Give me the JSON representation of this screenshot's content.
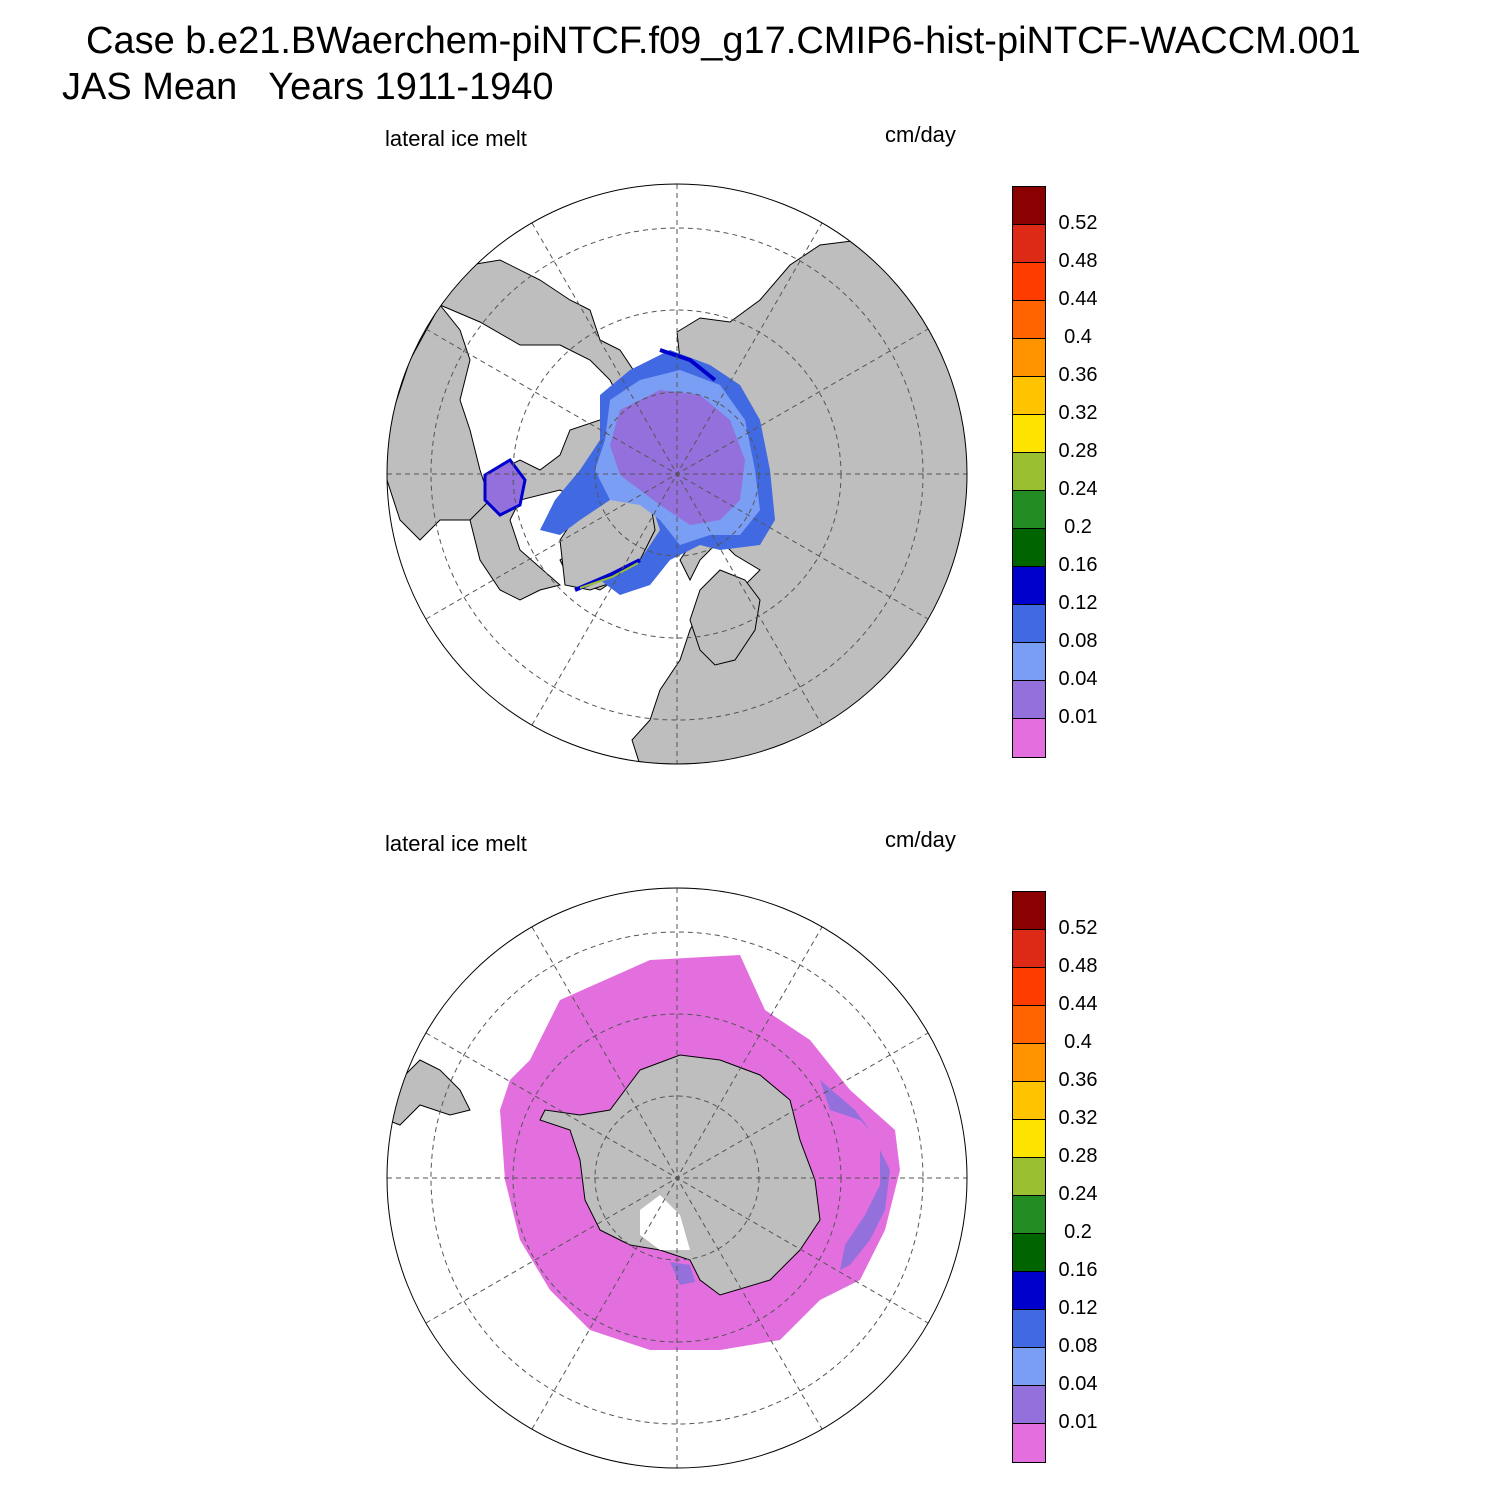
{
  "title": {
    "line1": "Case b.e21.BWaerchem-piNTCF.f09_g17.CMIP6-hist-piNTCF-WACCM.001",
    "line2": "JAS Mean   Years 1911-1940"
  },
  "panels": [
    {
      "variable": "lateral ice melt",
      "units": "cm/day",
      "hemisphere": "north"
    },
    {
      "variable": "lateral ice melt",
      "units": "cm/day",
      "hemisphere": "south"
    }
  ],
  "colorbar": {
    "labels": [
      "0.52",
      "0.48",
      "0.44",
      "0.4",
      "0.36",
      "0.32",
      "0.28",
      "0.24",
      "0.2",
      "0.16",
      "0.12",
      "0.08",
      "0.04",
      "0.01"
    ],
    "colors": [
      "#8b0000",
      "#dd2a16",
      "#ff3c00",
      "#ff6400",
      "#ff9400",
      "#ffc300",
      "#fde400",
      "#9ac031",
      "#228b22",
      "#006400",
      "#0000cd",
      "#4169e1",
      "#7b9ef5",
      "#9370db",
      "#e36fdf"
    ]
  },
  "colors": {
    "land": "#bebebe",
    "ocean": "#ffffff",
    "grid": "#555555"
  }
}
